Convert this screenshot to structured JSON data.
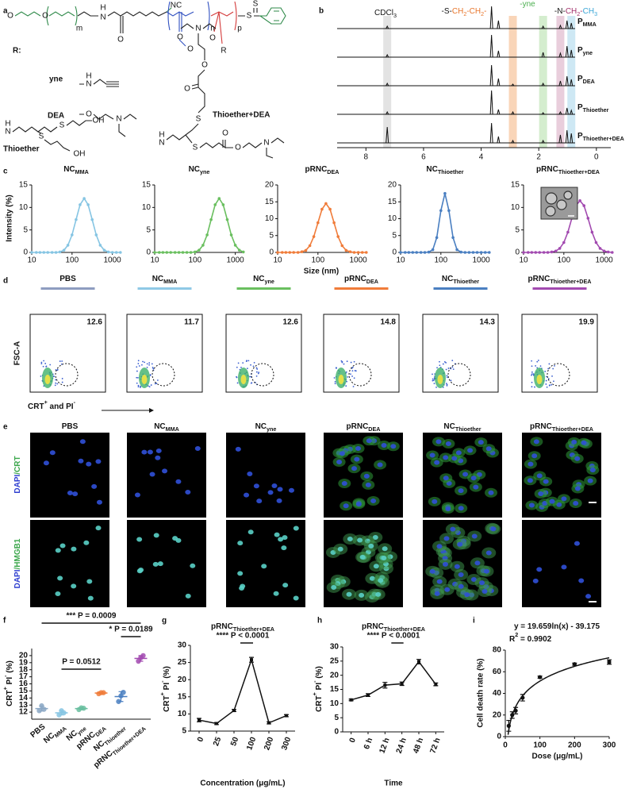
{
  "panel_labels": [
    "a",
    "b",
    "c",
    "d",
    "e",
    "f",
    "g",
    "h",
    "i"
  ],
  "structure": {
    "r_label": "R:",
    "groups": [
      "yne",
      "DEA",
      "Thioether",
      "Thioether+DEA"
    ],
    "atoms": [
      "O",
      "O",
      "m",
      "H",
      "N",
      "O",
      "NC",
      "O",
      "O",
      "n",
      "O",
      "R",
      "p",
      "S",
      "S",
      "H",
      "N",
      "O",
      "N",
      "H",
      "N",
      "S",
      "S",
      "OH",
      "OH",
      "O",
      "O",
      "S",
      "S",
      "H",
      "N",
      "O",
      "O",
      "N",
      "N"
    ]
  },
  "chart_data": [
    {
      "type": "nmr",
      "x": [
        7.26,
        3.64,
        3.4,
        2.9,
        1.85,
        1.25,
        1.02,
        0.87
      ],
      "xlim": [
        9,
        -0.5
      ],
      "xticks": [
        8,
        6,
        4,
        2,
        0
      ],
      "series": [
        {
          "name": [
            {
              "t": "P"
            },
            {
              "t": "MMA",
              "s": "sub"
            }
          ],
          "values": [
            3,
            28,
            10,
            0,
            3,
            4,
            10,
            7
          ]
        },
        {
          "name": [
            {
              "t": "P"
            },
            {
              "t": "yne",
              "s": "sub"
            }
          ],
          "values": [
            3,
            28,
            8,
            0,
            6,
            5,
            14,
            9
          ]
        },
        {
          "name": [
            {
              "t": "P"
            },
            {
              "t": "DEA",
              "s": "sub"
            }
          ],
          "values": [
            3,
            26,
            9,
            2,
            3,
            6,
            12,
            8
          ]
        },
        {
          "name": [
            {
              "t": "P"
            },
            {
              "t": "Thioether",
              "s": "sub"
            }
          ],
          "values": [
            3,
            30,
            6,
            3,
            2,
            3,
            8,
            5
          ]
        },
        {
          "name": [
            {
              "t": "P"
            },
            {
              "t": "Thioether+DEA",
              "s": "sub"
            }
          ],
          "values": [
            20,
            25,
            8,
            3,
            3,
            10,
            16,
            12
          ]
        }
      ],
      "bands": [
        {
          "x": 7.26,
          "color": "#dcdcdc"
        },
        {
          "x": 2.9,
          "color": "#f7cba6"
        },
        {
          "x": 1.85,
          "color": "#c9e8c2"
        },
        {
          "x": 1.25,
          "color": "#e4c2d3"
        },
        {
          "x": 0.87,
          "color": "#c2e2f1"
        }
      ],
      "annotations": [
        [
          {
            "t": "CDCl"
          },
          {
            "t": "3",
            "s": "sub"
          }
        ],
        [
          {
            "t": "-S-"
          },
          {
            "t": "CH",
            "color": "#e8762c"
          },
          {
            "t": "2",
            "s": "sub",
            "color": "#e8762c"
          },
          {
            "t": "-CH",
            "color": "#e8762c"
          },
          {
            "t": "2",
            "s": "sub",
            "color": "#e8762c"
          },
          {
            "t": "-",
            "color": "#e8762c"
          }
        ],
        [
          {
            "t": "-yne",
            "color": "#4caf50"
          }
        ],
        [
          {
            "t": "-N-"
          },
          {
            "t": "CH",
            "color": "#a2306b"
          },
          {
            "t": "2",
            "s": "sub",
            "color": "#a2306b"
          },
          {
            "t": "-",
            "color": "#a2306b"
          },
          {
            "t": "CH",
            "color": "#3aa6d6"
          },
          {
            "t": "3",
            "s": "sub",
            "color": "#3aa6d6"
          }
        ]
      ]
    },
    {
      "type": "dls",
      "title": [
        {
          "t": "NC"
        },
        {
          "t": "MMA",
          "s": "sub"
        }
      ],
      "y_label": "Intensity (%)",
      "color": "#86c5e3",
      "x": [
        10,
        13,
        16,
        20,
        25,
        32,
        40,
        50,
        63,
        79,
        100,
        126,
        158,
        200,
        251,
        316,
        398,
        501,
        631,
        794,
        1000,
        1259,
        1585
      ],
      "values": [
        0,
        0,
        0,
        0,
        0,
        0,
        0,
        0.1,
        0.5,
        1.6,
        3.9,
        7.3,
        10.6,
        12,
        10.6,
        7.3,
        3.9,
        1.6,
        0.5,
        0.1,
        0,
        0,
        0
      ],
      "xlim": [
        10,
        1600
      ],
      "xticks": [
        10,
        100,
        1000
      ],
      "ylim": [
        0,
        15
      ],
      "yticks": [
        0,
        5,
        10,
        15
      ],
      "log_x": true
    },
    {
      "type": "dls",
      "title": [
        {
          "t": "NC"
        },
        {
          "t": "yne",
          "s": "sub"
        }
      ],
      "color": "#6abf5f",
      "x": [
        10,
        13,
        16,
        20,
        25,
        32,
        40,
        50,
        63,
        79,
        100,
        126,
        158,
        200,
        251,
        316,
        398,
        501,
        631,
        794,
        1000,
        1259,
        1585
      ],
      "values": [
        0,
        0,
        0,
        0,
        0,
        0,
        0,
        0,
        0,
        0,
        0.1,
        0.5,
        1.6,
        3.9,
        7.3,
        10.6,
        12,
        10.6,
        7.3,
        3.9,
        1.6,
        0.5,
        0.1
      ],
      "xlim": [
        10,
        1600
      ],
      "xticks": [
        10,
        100,
        1000
      ],
      "ylim": [
        0,
        15
      ],
      "yticks": [
        0,
        5,
        10,
        15
      ],
      "log_x": true
    },
    {
      "type": "dls",
      "title": [
        {
          "t": "pRNC"
        },
        {
          "t": "DEA",
          "s": "sub"
        }
      ],
      "x_label": "Size (nm)",
      "color": "#f07c3a",
      "x": [
        10,
        13,
        16,
        20,
        25,
        32,
        40,
        50,
        63,
        79,
        100,
        126,
        158,
        200,
        251,
        316,
        398,
        501,
        631,
        794,
        1000,
        1259,
        1585
      ],
      "values": [
        0,
        0,
        0,
        0,
        0,
        0,
        0.2,
        0.6,
        2.0,
        4.7,
        8.8,
        12.8,
        14.5,
        12.8,
        8.8,
        4.7,
        2.0,
        0.6,
        0.2,
        0,
        0,
        0,
        0
      ],
      "xlim": [
        10,
        1600
      ],
      "xticks": [
        10,
        100,
        1000
      ],
      "ylim": [
        0,
        20
      ],
      "yticks": [
        0,
        5,
        10,
        15,
        20
      ],
      "log_x": true
    },
    {
      "type": "dls",
      "title": [
        {
          "t": "NC"
        },
        {
          "t": "Thioether",
          "s": "sub"
        }
      ],
      "color": "#4a7fc1",
      "x": [
        10,
        13,
        16,
        20,
        25,
        32,
        40,
        50,
        63,
        79,
        100,
        126,
        158,
        200,
        251,
        316,
        398,
        501,
        631,
        794,
        1000,
        1259,
        1585
      ],
      "values": [
        0,
        0,
        0,
        0,
        0,
        0,
        0,
        0.1,
        0.8,
        4.4,
        12.4,
        17.5,
        12.4,
        4.4,
        0.8,
        0.1,
        0,
        0,
        0,
        0,
        0,
        0,
        0
      ],
      "xlim": [
        10,
        1600
      ],
      "xticks": [
        10,
        100,
        1000
      ],
      "ylim": [
        0,
        20
      ],
      "yticks": [
        0,
        5,
        10,
        15,
        20
      ],
      "log_x": true
    },
    {
      "type": "dls",
      "title": [
        {
          "t": "pRNC"
        },
        {
          "t": "Thioether+DEA",
          "s": "sub"
        }
      ],
      "color": "#a24ab0",
      "x": [
        10,
        13,
        16,
        20,
        25,
        32,
        40,
        50,
        63,
        79,
        100,
        126,
        158,
        200,
        251,
        316,
        398,
        501,
        631,
        794,
        1000,
        1259,
        1585
      ],
      "values": [
        0,
        0,
        0,
        0,
        0,
        0,
        0,
        0.1,
        0.3,
        0.9,
        2.2,
        4.5,
        7.6,
        10.4,
        11.5,
        10.4,
        7.6,
        4.5,
        2.2,
        0.9,
        0.3,
        0.1,
        0
      ],
      "xlim": [
        10,
        1600
      ],
      "xticks": [
        10,
        100,
        1000
      ],
      "ylim": [
        0,
        15
      ],
      "yticks": [
        0,
        5,
        10,
        15
      ],
      "log_x": true
    },
    {
      "type": "dot",
      "categories": [
        [
          {
            "t": "PBS"
          }
        ],
        [
          {
            "t": "NC"
          },
          {
            "t": "MMA",
            "s": "sub"
          }
        ],
        [
          {
            "t": "NC"
          },
          {
            "t": "yne",
            "s": "sub"
          }
        ],
        [
          {
            "t": "pRNC"
          },
          {
            "t": "DEA",
            "s": "sub"
          }
        ],
        [
          {
            "t": "NC"
          },
          {
            "t": "Thioether",
            "s": "sub"
          }
        ],
        [
          {
            "t": "pRNC"
          },
          {
            "t": "Thioether+DEA",
            "s": "sub"
          }
        ]
      ],
      "values": [
        12.5,
        11.9,
        12.5,
        14.7,
        14.2,
        19.6
      ],
      "errors": [
        0.35,
        0.3,
        0.15,
        0.1,
        0.7,
        0.4
      ],
      "points": [
        [
          12.2,
          12.9,
          12.4
        ],
        [
          11.6,
          12.2,
          11.9
        ],
        [
          12.35,
          12.6,
          12.55
        ],
        [
          14.6,
          14.75,
          14.75
        ],
        [
          13.5,
          14.3,
          14.8
        ],
        [
          19.2,
          19.7,
          20.0
        ]
      ],
      "colors": [
        "#8aa7c4",
        "#86c5e3",
        "#6abfa0",
        "#f07c3a",
        "#4a7fc1",
        "#a24ab0"
      ],
      "ylim": [
        11,
        21
      ],
      "yticks": [
        12,
        13,
        14,
        15,
        16,
        17,
        18,
        19,
        20
      ],
      "y_label": [
        {
          "t": "CRT"
        },
        {
          "t": "+",
          "s": "sup"
        },
        {
          "t": " PI"
        },
        {
          "t": "-",
          "s": "sup"
        },
        {
          "t": " (%)"
        }
      ],
      "annotations": [
        "*** P = 0.0009",
        "* P = 0.0189",
        "P = 0.0512"
      ]
    },
    {
      "type": "line",
      "title": [
        {
          "t": "pRNC"
        },
        {
          "t": "Thioether+DEA",
          "s": "sub"
        }
      ],
      "categories": [
        "0",
        "25",
        "50",
        "100",
        "200",
        "300"
      ],
      "values": [
        8.2,
        7.2,
        11,
        25.8,
        7.4,
        9.5
      ],
      "errors": [
        0.5,
        0.3,
        0.3,
        0.7,
        0.3,
        0.3
      ],
      "ylim": [
        5,
        30
      ],
      "yticks": [
        5,
        10,
        15,
        20,
        25,
        30
      ],
      "x_label": "Concentration (μg/mL)",
      "y_label": [
        {
          "t": "CRT"
        },
        {
          "t": "+",
          "s": "sup"
        },
        {
          "t": " PI"
        },
        {
          "t": "-",
          "s": "sup"
        },
        {
          "t": " (%)"
        }
      ],
      "annotations": [
        "**** P < 0.0001"
      ]
    },
    {
      "type": "line",
      "title": [
        {
          "t": "pRNC"
        },
        {
          "t": "Thioether+DEA",
          "s": "sub"
        }
      ],
      "categories": [
        "0",
        "6 h",
        "12 h",
        "24 h",
        "48 h",
        "72 h"
      ],
      "values": [
        11.3,
        13,
        16.5,
        17,
        24.8,
        16.8
      ],
      "errors": [
        0.3,
        0.5,
        1,
        0.6,
        0.8,
        0.5
      ],
      "ylim": [
        0,
        30
      ],
      "yticks": [
        0,
        5,
        10,
        15,
        20,
        25,
        30
      ],
      "x_label": "Time",
      "y_label": [
        {
          "t": "CRT"
        },
        {
          "t": "+",
          "s": "sup"
        },
        {
          "t": " PI"
        },
        {
          "t": "-",
          "s": "sup"
        },
        {
          "t": " (%)"
        }
      ],
      "annotations": [
        "**** P < 0.0001"
      ]
    },
    {
      "type": "scatter",
      "x": [
        10,
        20,
        30,
        50,
        100,
        200,
        300
      ],
      "values": [
        10,
        20,
        24,
        36,
        55,
        67,
        69
      ],
      "errors": [
        5,
        3,
        3,
        3,
        1,
        1,
        2
      ],
      "xlim": [
        0,
        300
      ],
      "xticks": [
        0,
        100,
        200,
        300
      ],
      "ylim": [
        0,
        80
      ],
      "yticks": [
        0,
        20,
        40,
        60,
        80
      ],
      "x_label": "Dose (μg/mL)",
      "y_label": "Cell death rate (%)",
      "fit": {
        "a": 19.659,
        "b": -39.175
      },
      "annotations": [
        [
          {
            "t": "y = 19.659ln(x) - 39.175"
          }
        ],
        [
          {
            "t": "R"
          },
          {
            "t": "2",
            "s": "sup"
          },
          {
            "t": " = 0.9902"
          }
        ]
      ]
    }
  ],
  "flow": {
    "titles": [
      [
        {
          "t": "PBS"
        }
      ],
      [
        {
          "t": "NC"
        },
        {
          "t": "MMA",
          "s": "sub"
        }
      ],
      [
        {
          "t": "NC"
        },
        {
          "t": "yne",
          "s": "sub"
        }
      ],
      [
        {
          "t": "pRNC"
        },
        {
          "t": "DEA",
          "s": "sub"
        }
      ],
      [
        {
          "t": "NC"
        },
        {
          "t": "Thioether",
          "s": "sub"
        }
      ],
      [
        {
          "t": "pRNC"
        },
        {
          "t": "Thioether+DEA",
          "s": "sub"
        }
      ]
    ],
    "colors": [
      "#8e9dc0",
      "#8fc9e6",
      "#6abf5f",
      "#f07c3a",
      "#4a7fc1",
      "#a24ab0"
    ],
    "values": [
      12.6,
      11.7,
      12.6,
      14.8,
      14.3,
      19.9
    ],
    "y_label": "FSC-A",
    "x_label": [
      {
        "t": "CRT"
      },
      {
        "t": "+",
        "s": "sup"
      },
      {
        "t": " and PI"
      },
      {
        "t": "-",
        "s": "sup"
      }
    ]
  },
  "imaging": {
    "titles": [
      [
        {
          "t": "PBS"
        }
      ],
      [
        {
          "t": "NC"
        },
        {
          "t": "MMA",
          "s": "sub"
        }
      ],
      [
        {
          "t": "NC"
        },
        {
          "t": "yne",
          "s": "sub"
        }
      ],
      [
        {
          "t": "pRNC"
        },
        {
          "t": "DEA",
          "s": "sub"
        }
      ],
      [
        {
          "t": "NC"
        },
        {
          "t": "Thioether",
          "s": "sub"
        }
      ],
      [
        {
          "t": "pRNC"
        },
        {
          "t": "Thioether+DEA",
          "s": "sub"
        }
      ]
    ],
    "row_labels": [
      [
        {
          "t": "DAPI",
          "color": "#2f3fd0"
        },
        {
          "t": "/CRT",
          "color": "#3aa64a"
        }
      ],
      [
        {
          "t": "DAPI",
          "color": "#2f3fd0"
        },
        {
          "t": "/HMGB1",
          "color": "#3aa64a"
        }
      ]
    ]
  }
}
